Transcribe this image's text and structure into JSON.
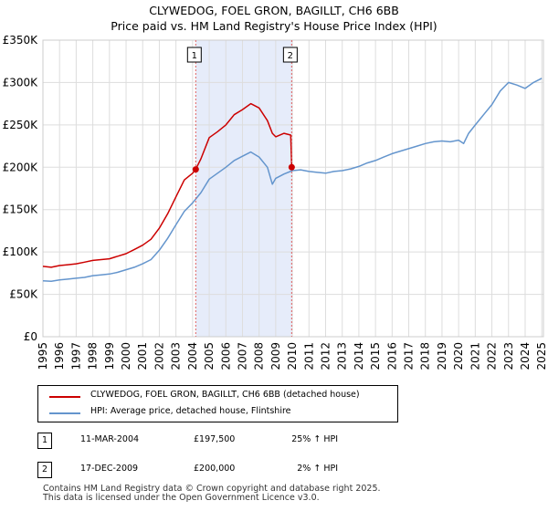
{
  "chart_data": {
    "type": "line",
    "title": "CLYWEDOG, FOEL GRON, BAGILLT, CH6 6BB",
    "subtitle": "Price paid vs. HM Land Registry's House Price Index (HPI)",
    "xlim": [
      1995,
      2025.1
    ],
    "ylim": [
      0,
      350000
    ],
    "yticks": [
      0,
      50000,
      100000,
      150000,
      200000,
      250000,
      300000,
      350000
    ],
    "ytick_labels": [
      "£0",
      "£50K",
      "£100K",
      "£150K",
      "£200K",
      "£250K",
      "£300K",
      "£350K"
    ],
    "xticks": [
      1995,
      1996,
      1997,
      1998,
      1999,
      2000,
      2001,
      2002,
      2003,
      2004,
      2005,
      2006,
      2007,
      2008,
      2009,
      2010,
      2011,
      2012,
      2013,
      2014,
      2015,
      2016,
      2017,
      2018,
      2019,
      2020,
      2021,
      2022,
      2023,
      2024,
      2025
    ],
    "xtick_labels": [
      "1995",
      "1996",
      "1997",
      "1998",
      "1999",
      "2000",
      "2001",
      "2002",
      "2003",
      "2004",
      "2005",
      "2006",
      "2007",
      "2008",
      "2009",
      "2010",
      "2011",
      "2012",
      "2013",
      "2014",
      "2015",
      "2016",
      "2017",
      "2018",
      "2019",
      "2020",
      "2021",
      "2022",
      "2023",
      "2024",
      "2025"
    ],
    "grid": true,
    "shaded_period": [
      2004.19,
      2009.96
    ],
    "series": [
      {
        "name": "CLYWEDOG, FOEL GRON, BAGILLT, CH6 6BB (detached house)",
        "color": "#cc0000",
        "x": [
          1995.0,
          1995.5,
          1996.0,
          1996.5,
          1997.0,
          1997.5,
          1998.0,
          1998.5,
          1999.0,
          1999.5,
          2000.0,
          2000.5,
          2001.0,
          2001.5,
          2002.0,
          2002.5,
          2003.0,
          2003.5,
          2004.0,
          2004.19,
          2004.5,
          2005.0,
          2005.5,
          2006.0,
          2006.5,
          2007.0,
          2007.5,
          2008.0,
          2008.5,
          2008.8,
          2009.0,
          2009.5,
          2009.9,
          2009.96
        ],
        "y": [
          83000,
          82000,
          84000,
          85000,
          86000,
          88000,
          90000,
          91000,
          92000,
          95000,
          98000,
          103000,
          108000,
          115000,
          128000,
          145000,
          165000,
          185000,
          193000,
          197500,
          210000,
          235000,
          242000,
          250000,
          262000,
          268000,
          275000,
          270000,
          255000,
          240000,
          236000,
          240000,
          238000,
          200000
        ]
      },
      {
        "name": "HPI: Average price, detached house, Flintshire",
        "color": "#6495cd",
        "x": [
          1995.0,
          1995.5,
          1996.0,
          1996.5,
          1997.0,
          1997.5,
          1998.0,
          1998.5,
          1999.0,
          1999.5,
          2000.0,
          2000.5,
          2001.0,
          2001.5,
          2002.0,
          2002.5,
          2003.0,
          2003.5,
          2004.0,
          2004.5,
          2005.0,
          2005.5,
          2006.0,
          2006.5,
          2007.0,
          2007.5,
          2008.0,
          2008.5,
          2008.8,
          2009.0,
          2009.5,
          2010.0,
          2010.5,
          2011.0,
          2011.5,
          2012.0,
          2012.5,
          2013.0,
          2013.5,
          2014.0,
          2014.5,
          2015.0,
          2015.5,
          2016.0,
          2016.5,
          2017.0,
          2017.5,
          2018.0,
          2018.5,
          2019.0,
          2019.5,
          2020.0,
          2020.3,
          2020.6,
          2021.0,
          2021.5,
          2022.0,
          2022.5,
          2023.0,
          2023.5,
          2024.0,
          2024.5,
          2025.0
        ],
        "y": [
          66000,
          65500,
          67000,
          68000,
          69000,
          70000,
          72000,
          73000,
          74000,
          76000,
          79000,
          82000,
          86000,
          91000,
          102000,
          116000,
          132000,
          148000,
          158000,
          170000,
          186000,
          193000,
          200000,
          208000,
          213000,
          218000,
          212000,
          200000,
          180000,
          187000,
          192000,
          196000,
          197000,
          195000,
          194000,
          193000,
          195000,
          196000,
          198000,
          201000,
          205000,
          208000,
          212000,
          216000,
          219000,
          222000,
          225000,
          228000,
          230000,
          231000,
          230000,
          232000,
          228000,
          240000,
          250000,
          262000,
          274000,
          290000,
          300000,
          297000,
          293000,
          300000,
          305000
        ]
      }
    ],
    "annotations": [
      {
        "label": "1",
        "x": 2004.19,
        "y": 197500
      },
      {
        "label": "2",
        "x": 2009.96,
        "y": 200000
      }
    ]
  },
  "legend": {
    "items": [
      {
        "label": "CLYWEDOG, FOEL GRON, BAGILLT, CH6 6BB (detached house)",
        "color": "#cc0000"
      },
      {
        "label": "HPI: Average price, detached house, Flintshire",
        "color": "#6495cd"
      }
    ]
  },
  "sales": [
    {
      "num": "1",
      "date": "11-MAR-2004",
      "price": "£197,500",
      "hpi": "25% ↑ HPI"
    },
    {
      "num": "2",
      "date": "17-DEC-2009",
      "price": "£200,000",
      "hpi": "2% ↑ HPI"
    }
  ],
  "footer": {
    "line1": "Contains HM Land Registry data © Crown copyright and database right 2025.",
    "line2": "This data is licensed under the Open Government Licence v3.0."
  }
}
